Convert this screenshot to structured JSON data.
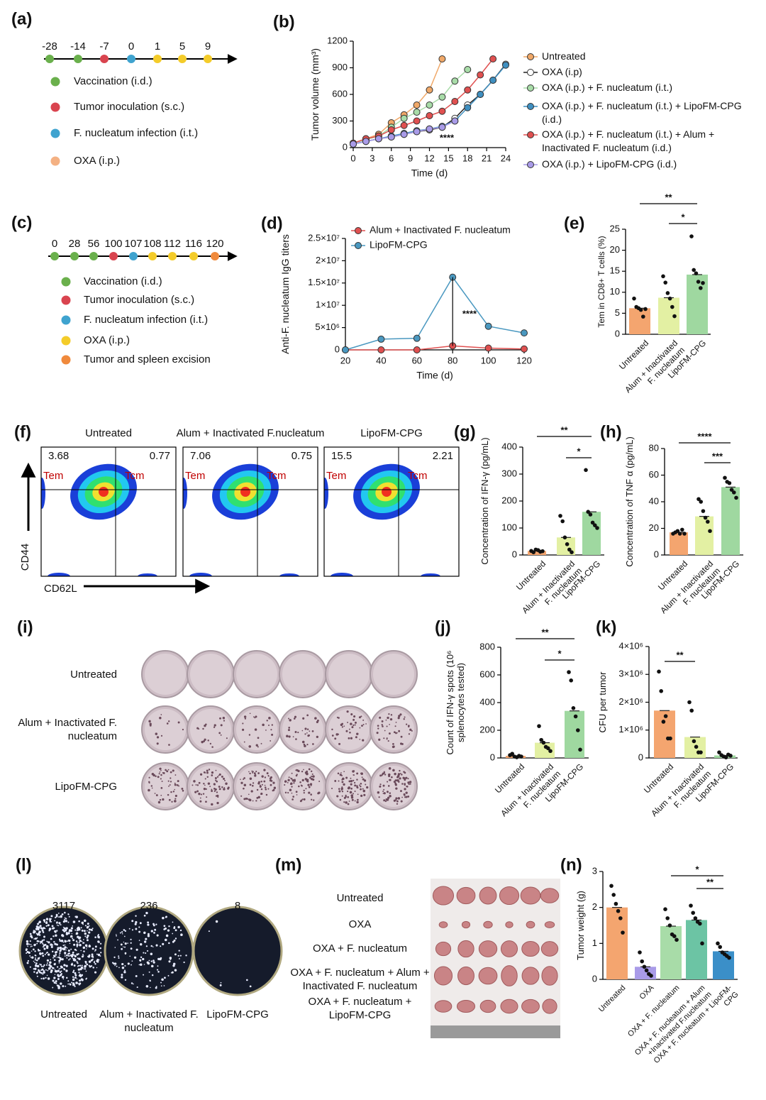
{
  "timelines": [
    {
      "label": "(a)",
      "ticks": [
        {
          "day": -28,
          "color": "#6ab04c"
        },
        {
          "day": -14,
          "color": "#6ab04c"
        },
        {
          "day": -7,
          "color": "#d9444f"
        },
        {
          "day": 0,
          "color": "#3fa3cf"
        },
        {
          "day": 1,
          "color": "#f4cc2a"
        },
        {
          "day": 5,
          "color": "#f4cc2a"
        },
        {
          "day": 9,
          "color": "#f4cc2a"
        }
      ],
      "legend": [
        {
          "text": "Vaccination (i.d.)",
          "color": "#6ab04c"
        },
        {
          "text": "Tumor inoculation (s.c.)",
          "color": "#d9444f"
        },
        {
          "text": "F. nucleatum infection (i.t.)",
          "color": "#3fa3cf"
        },
        {
          "text": "OXA (i.p.)",
          "color": "#f4b183"
        }
      ]
    },
    {
      "label": "(c)",
      "ticks": [
        {
          "day": 0,
          "color": "#6ab04c"
        },
        {
          "day": 28,
          "color": "#6ab04c"
        },
        {
          "day": 56,
          "color": "#6ab04c"
        },
        {
          "day": 100,
          "color": "#d9444f"
        },
        {
          "day": 107,
          "color": "#3fa3cf"
        },
        {
          "day": 108,
          "color": "#f4cc2a"
        },
        {
          "day": 112,
          "color": "#f4cc2a"
        },
        {
          "day": 116,
          "color": "#f4cc2a"
        },
        {
          "day": 120,
          "color": "#f08a3c"
        }
      ],
      "legend": [
        {
          "text": "Vaccination (i.d.)",
          "color": "#6ab04c"
        },
        {
          "text": "Tumor inoculation (s.c.)",
          "color": "#d9444f"
        },
        {
          "text": "F. nucleatum infection (i.t.)",
          "color": "#3fa3cf"
        },
        {
          "text": "OXA (i.p.)",
          "color": "#f4cc2a"
        },
        {
          "text": "Tumor and spleen excision",
          "color": "#f08a3c"
        }
      ]
    }
  ],
  "chart_data": [
    {
      "label": "(b)",
      "type": "line",
      "x_label": "Time (d)",
      "y_label": "Tumor volume (mm³)",
      "legend": "right",
      "x": [
        0,
        2,
        4,
        6,
        8,
        10,
        12,
        14,
        16,
        18,
        20,
        22,
        24
      ],
      "xlim": [
        0,
        24
      ],
      "xticks": [
        0,
        3,
        6,
        9,
        12,
        15,
        18,
        21,
        24
      ],
      "ylim": [
        0,
        1200
      ],
      "yticks": [
        0,
        300,
        600,
        900,
        1200
      ],
      "annotations": [
        "****"
      ],
      "series": [
        {
          "name": "Untreated",
          "color": "#f0a868",
          "values": [
            50,
            100,
            150,
            280,
            370,
            480,
            650,
            1000,
            null,
            null,
            null,
            null,
            null
          ]
        },
        {
          "name": "OXA (i.p)",
          "color": "#ffffff",
          "values": [
            40,
            70,
            100,
            120,
            150,
            180,
            200,
            230,
            330,
            480,
            600,
            760,
            940
          ]
        },
        {
          "name": "OXA (i.p.) + F. nucleatum (i.t.)",
          "color": "#a8dca8",
          "values": [
            50,
            90,
            130,
            230,
            330,
            400,
            480,
            570,
            750,
            880,
            null,
            null,
            null
          ]
        },
        {
          "name": "OXA (i.p.) + F. nucleatum (i.t.) + LipoFM-CPG (i.d.)",
          "color": "#3f8fc0",
          "values": [
            40,
            70,
            100,
            130,
            160,
            190,
            210,
            240,
            300,
            450,
            600,
            760,
            930
          ]
        },
        {
          "name": "OXA (i.p.) + F. nucleatum (i.t.) + Alum + Inactivated F. nucleatum (i.d.)",
          "color": "#e05050",
          "values": [
            50,
            100,
            130,
            200,
            250,
            300,
            360,
            410,
            520,
            650,
            820,
            1000,
            null
          ]
        },
        {
          "name": "OXA (i.p.) + LipoFM-CPG (i.d.)",
          "color": "#a99be8",
          "values": [
            40,
            70,
            100,
            120,
            150,
            180,
            210,
            230,
            300,
            null,
            null,
            null,
            null
          ]
        }
      ]
    },
    {
      "label": "(d)",
      "type": "line",
      "x_label": "Time (d)",
      "y_label": "Anti-F. nucleatum IgG titers",
      "legend": "top",
      "x": [
        20,
        40,
        60,
        80,
        100,
        120
      ],
      "xlim": [
        20,
        120
      ],
      "xticks": [
        20,
        40,
        60,
        80,
        100,
        120
      ],
      "ylim": [
        0,
        25000000
      ],
      "yticks": [
        0,
        {
          "value": 5000000,
          "label": "5×10⁶"
        },
        {
          "value": 10000000,
          "label": "1×10⁷"
        },
        {
          "value": 15000000,
          "label": "1.5×10⁷"
        },
        {
          "value": 20000000,
          "label": "2×10⁷"
        },
        {
          "value": 25000000,
          "label": "2.5×10⁷"
        }
      ],
      "annotations": [
        "****"
      ],
      "series": [
        {
          "name": "Alum + Inactivated F. nucleatum",
          "color": "#e05050",
          "values": [
            0,
            0,
            0,
            900000,
            400000,
            200000
          ]
        },
        {
          "name": "LipoFM-CPG",
          "color": "#4a98c0",
          "values": [
            0,
            2400000,
            2600000,
            16300000,
            5300000,
            3800000
          ]
        }
      ]
    },
    {
      "label": "(e)",
      "type": "bar",
      "y_label": "Tem in CD8+ T cells (%)",
      "categories": [
        "Untreated",
        "Alum + Inactivated F. nucleatum",
        "LipoFM-CPG"
      ],
      "colors": [
        "#f4a56f",
        "#e3f0a3",
        "#9fd8a0"
      ],
      "values": [
        6.2,
        8.7,
        14.2
      ],
      "points": [
        [
          8.5,
          6.5,
          6.2,
          5.8,
          4.2,
          6
        ],
        [
          13.8,
          12.3,
          9.8,
          8.5,
          6.5,
          4.3
        ],
        [
          23.3,
          15.3,
          14.5,
          12.5,
          11,
          12.2
        ]
      ],
      "ylim": [
        0,
        25
      ],
      "yticks": [
        0,
        5,
        10,
        15,
        20,
        25
      ],
      "annotations": [
        "**",
        "*"
      ]
    },
    {
      "label": "(g)",
      "type": "bar",
      "y_label": "Concentration of IFN-γ (pg/mL)",
      "categories": [
        "Untreated",
        "Alum + Inactivated F. nucleatum",
        "LipoFM-CPG"
      ],
      "colors": [
        "#f4a56f",
        "#e3f0a3",
        "#9fd8a0"
      ],
      "values": [
        15,
        65,
        160
      ],
      "points": [
        [
          15,
          10,
          20,
          18,
          12,
          14
        ],
        [
          145,
          125,
          65,
          40,
          20,
          10
        ],
        [
          315,
          160,
          150,
          120,
          110,
          100
        ]
      ],
      "ylim": [
        0,
        400
      ],
      "yticks": [
        0,
        100,
        200,
        300,
        400
      ],
      "annotations": [
        "**",
        "*"
      ]
    },
    {
      "label": "(h)",
      "type": "bar",
      "y_label": "Concentration of TNF α (pg/mL)",
      "categories": [
        "Untreated",
        "Alum + Inactivated F. nucleatum",
        "LipoFM-CPG"
      ],
      "colors": [
        "#f4a56f",
        "#e3f0a3",
        "#9fd8a0"
      ],
      "values": [
        17,
        29,
        51
      ],
      "points": [
        [
          16,
          17,
          18,
          16,
          19,
          16
        ],
        [
          42,
          40,
          33,
          28,
          25,
          18
        ],
        [
          58,
          55,
          54,
          49,
          47,
          43
        ]
      ],
      "ylim": [
        0,
        80
      ],
      "yticks": [
        0,
        20,
        40,
        60,
        80
      ],
      "annotations": [
        "****",
        "***"
      ]
    },
    {
      "label": "(j)",
      "type": "bar",
      "y_label": "Count of IFN-γ spots (10⁶ splenocytes tested)",
      "categories": [
        "Untreated",
        "Alum + Inactivated F. nucleatum",
        "LipoFM-CPG"
      ],
      "colors": [
        "#f4a56f",
        "#e3f0a3",
        "#9fd8a0"
      ],
      "values": [
        15,
        110,
        340
      ],
      "points": [
        [
          20,
          30,
          10,
          5,
          15,
          10
        ],
        [
          230,
          130,
          110,
          80,
          70,
          50
        ],
        [
          620,
          560,
          360,
          300,
          200,
          60
        ]
      ],
      "ylim": [
        0,
        800
      ],
      "yticks": [
        0,
        200,
        400,
        600,
        800
      ],
      "annotations": [
        "**",
        "*"
      ]
    },
    {
      "label": "(k)",
      "type": "bar",
      "y_label": "CFU per tumor",
      "categories": [
        "Untreated",
        "Alum + Inactivated F. nucleatum",
        "LipoFM-CPG"
      ],
      "colors": [
        "#f4a56f",
        "#e3f0a3",
        "#9fd8a0"
      ],
      "values": [
        1700000,
        750000,
        90000
      ],
      "points": [
        [
          3100000,
          2400000,
          1300000,
          1500000,
          700000,
          700000
        ],
        [
          2000000,
          1700000,
          600000,
          400000,
          200000,
          200000
        ],
        [
          200000,
          100000,
          50000,
          20000,
          120000,
          80000
        ]
      ],
      "ylim": [
        0,
        4000000
      ],
      "yticks": [
        0,
        {
          "value": 1000000,
          "label": "1×10⁶"
        },
        {
          "value": 2000000,
          "label": "2×10⁶"
        },
        {
          "value": 3000000,
          "label": "3×10⁶"
        },
        {
          "value": 4000000,
          "label": "4×10⁶"
        }
      ],
      "annotations": [
        "**"
      ]
    },
    {
      "label": "(n)",
      "type": "bar",
      "y_label": "Tumor weight (g)",
      "categories": [
        "Untreated",
        "OXA",
        "OXA + F. nucleatum",
        "OXA + F. nucleatum + Alum +Inactivated F.nucleatum",
        "OXA + F. nucleatum + LipoFM-CPG"
      ],
      "colors": [
        "#f4a56f",
        "#a99be8",
        "#a8dca8",
        "#6cc4a4",
        "#3b8fc8"
      ],
      "values": [
        2.0,
        0.35,
        1.48,
        1.65,
        0.78
      ],
      "points": [
        [
          2.6,
          2.35,
          2.1,
          1.9,
          1.7,
          1.3
        ],
        [
          0.75,
          0.5,
          0.35,
          0.25,
          0.15,
          0.1
        ],
        [
          1.95,
          1.7,
          1.5,
          1.25,
          1.2,
          1.1
        ],
        [
          2.05,
          1.85,
          1.7,
          1.6,
          1.55,
          1.0
        ],
        [
          1.0,
          0.9,
          0.75,
          0.7,
          0.65,
          0.6
        ]
      ],
      "ylim": [
        0,
        3
      ],
      "yticks": [
        0,
        1,
        2,
        3
      ],
      "annotations": [
        "*",
        "**"
      ]
    }
  ],
  "flow": {
    "label": "(f)",
    "x_axis": "CD62L",
    "y_axis": "CD44",
    "gates": [
      "Tem",
      "Tcm"
    ],
    "plots": [
      {
        "title": "Untreated",
        "tem": 3.68,
        "tcm": 0.77
      },
      {
        "title": "Alum + Inactivated F.nucleatum",
        "tem": 7.06,
        "tcm": 0.75
      },
      {
        "title": "LipoFM-CPG",
        "tem": 15.5,
        "tcm": 2.21
      }
    ]
  },
  "elispot": {
    "label": "(i)",
    "rows": [
      "Untreated",
      "Alum + Inactivated F. nucleatum",
      "LipoFM-CPG"
    ]
  },
  "plates": {
    "label": "(l)",
    "plates": [
      {
        "count": 3117,
        "name": "Untreated"
      },
      {
        "count": 236,
        "name": "Alum + Inactivated F. nucleatum"
      },
      {
        "count": 8,
        "name": "LipoFM-CPG"
      }
    ]
  },
  "tumors": {
    "label": "(m)",
    "groups": [
      "Untreated",
      "OXA",
      "OXA + F. nucleatum",
      "OXA + F. nucleatum + Alum + Inactivated F. nucleatum",
      "OXA + F. nucleatum + LipoFM-CPG"
    ]
  }
}
